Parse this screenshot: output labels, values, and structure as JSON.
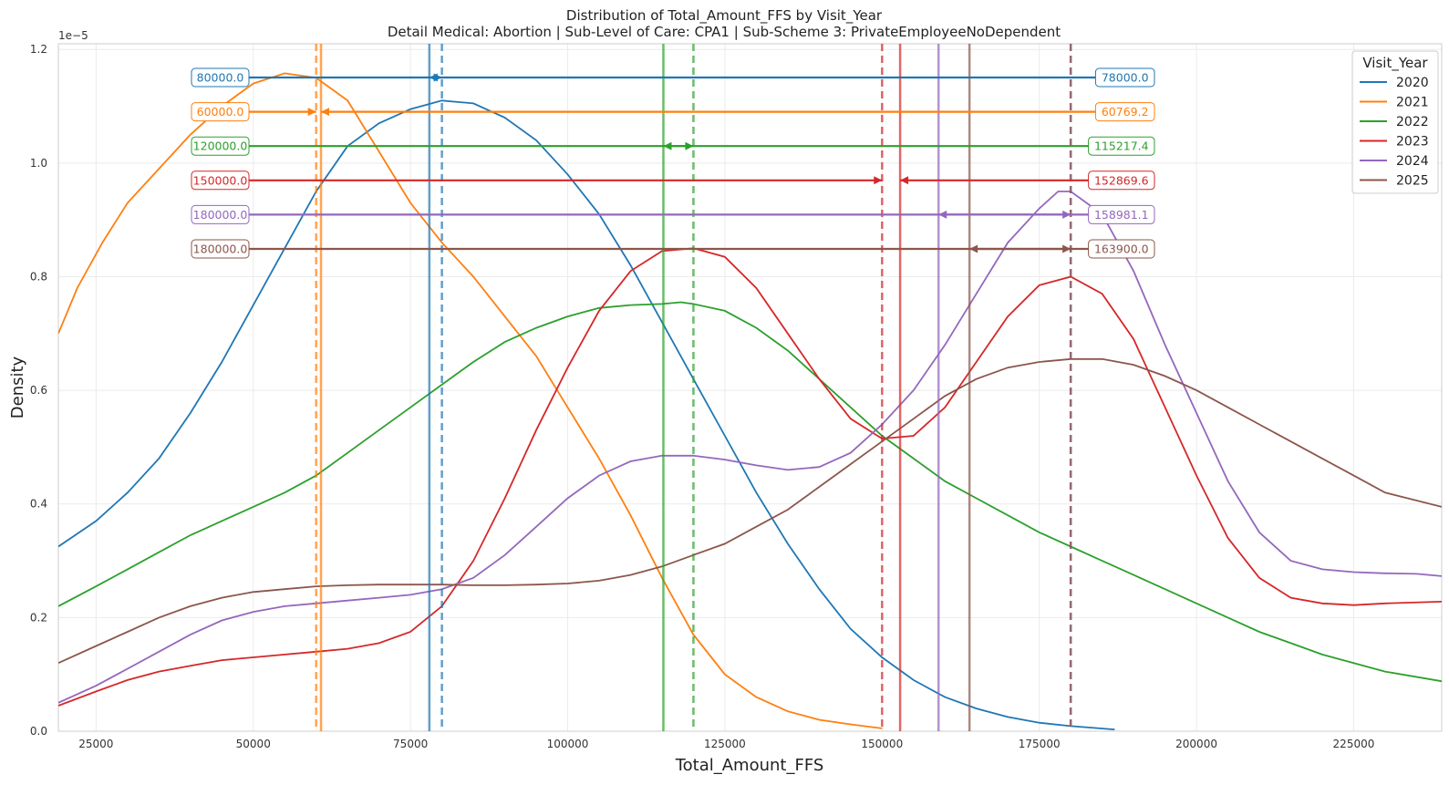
{
  "chart_data": {
    "type": "line",
    "title": "Distribution of Total_Amount_FFS by Visit_Year",
    "subtitle": "Detail Medical: Abortion | Sub-Level of Care: CPA1 | Sub-Scheme 3: PrivateEmployeeNoDependent",
    "xlabel": "Total_Amount_FFS",
    "ylabel": "Density",
    "y_offset_text": "1e−5",
    "xlim": [
      19000,
      239000
    ],
    "ylim": [
      0,
      1.21
    ],
    "x_ticks": [
      25000,
      50000,
      75000,
      100000,
      125000,
      150000,
      175000,
      200000,
      225000
    ],
    "x_tick_labels": [
      "25000",
      "50000",
      "75000",
      "100000",
      "125000",
      "150000",
      "175000",
      "200000",
      "225000"
    ],
    "y_ticks": [
      0.0,
      0.2,
      0.4,
      0.6,
      0.8,
      1.0,
      1.2
    ],
    "y_tick_labels": [
      "0.0",
      "0.2",
      "0.4",
      "0.6",
      "0.8",
      "1.0",
      "1.2"
    ],
    "grid": true,
    "legend": {
      "title": "Visit_Year",
      "placement": "top-right"
    },
    "series": [
      {
        "name": "2020",
        "color": "#1f77b4",
        "mean": 78000.0,
        "median": 80000.0,
        "mean_label": "78000.0",
        "median_label": "80000.0",
        "points": [
          [
            19000,
            0.325
          ],
          [
            25000,
            0.37
          ],
          [
            30000,
            0.42
          ],
          [
            35000,
            0.48
          ],
          [
            40000,
            0.56
          ],
          [
            45000,
            0.65
          ],
          [
            50000,
            0.75
          ],
          [
            55000,
            0.85
          ],
          [
            60000,
            0.95
          ],
          [
            65000,
            1.03
          ],
          [
            70000,
            1.07
          ],
          [
            75000,
            1.095
          ],
          [
            80000,
            1.11
          ],
          [
            85000,
            1.105
          ],
          [
            90000,
            1.08
          ],
          [
            95000,
            1.04
          ],
          [
            100000,
            0.98
          ],
          [
            105000,
            0.91
          ],
          [
            110000,
            0.82
          ],
          [
            115000,
            0.72
          ],
          [
            120000,
            0.62
          ],
          [
            125000,
            0.52
          ],
          [
            130000,
            0.42
          ],
          [
            135000,
            0.33
          ],
          [
            140000,
            0.25
          ],
          [
            145000,
            0.18
          ],
          [
            150000,
            0.13
          ],
          [
            155000,
            0.09
          ],
          [
            160000,
            0.06
          ],
          [
            165000,
            0.04
          ],
          [
            170000,
            0.025
          ],
          [
            175000,
            0.015
          ],
          [
            180000,
            0.009
          ],
          [
            187000,
            0.003
          ]
        ]
      },
      {
        "name": "2021",
        "color": "#ff7f0e",
        "mean": 60769.2,
        "median": 60000.0,
        "mean_label": "60769.2",
        "median_label": "60000.0",
        "points": [
          [
            19000,
            0.7
          ],
          [
            22000,
            0.78
          ],
          [
            26000,
            0.86
          ],
          [
            30000,
            0.93
          ],
          [
            35000,
            0.99
          ],
          [
            40000,
            1.05
          ],
          [
            45000,
            1.1
          ],
          [
            50000,
            1.14
          ],
          [
            55000,
            1.158
          ],
          [
            60000,
            1.15
          ],
          [
            65000,
            1.11
          ],
          [
            70000,
            1.02
          ],
          [
            75000,
            0.93
          ],
          [
            80000,
            0.86
          ],
          [
            85000,
            0.8
          ],
          [
            90000,
            0.73
          ],
          [
            95000,
            0.66
          ],
          [
            100000,
            0.57
          ],
          [
            105000,
            0.48
          ],
          [
            110000,
            0.38
          ],
          [
            115000,
            0.27
          ],
          [
            120000,
            0.17
          ],
          [
            125000,
            0.1
          ],
          [
            130000,
            0.06
          ],
          [
            135000,
            0.035
          ],
          [
            140000,
            0.02
          ],
          [
            145000,
            0.012
          ],
          [
            150000,
            0.005
          ]
        ]
      },
      {
        "name": "2022",
        "color": "#2ca02c",
        "mean": 115217.4,
        "median": 120000.0,
        "mean_label": "115217.4",
        "median_label": "120000.0",
        "points": [
          [
            19000,
            0.22
          ],
          [
            25000,
            0.255
          ],
          [
            30000,
            0.285
          ],
          [
            35000,
            0.315
          ],
          [
            40000,
            0.345
          ],
          [
            45000,
            0.37
          ],
          [
            50000,
            0.395
          ],
          [
            55000,
            0.42
          ],
          [
            60000,
            0.45
          ],
          [
            65000,
            0.49
          ],
          [
            70000,
            0.53
          ],
          [
            75000,
            0.57
          ],
          [
            80000,
            0.61
          ],
          [
            85000,
            0.65
          ],
          [
            90000,
            0.685
          ],
          [
            95000,
            0.71
          ],
          [
            100000,
            0.73
          ],
          [
            105000,
            0.745
          ],
          [
            110000,
            0.75
          ],
          [
            115000,
            0.752
          ],
          [
            118000,
            0.755
          ],
          [
            120000,
            0.752
          ],
          [
            125000,
            0.74
          ],
          [
            130000,
            0.71
          ],
          [
            135000,
            0.67
          ],
          [
            140000,
            0.62
          ],
          [
            145000,
            0.57
          ],
          [
            150000,
            0.52
          ],
          [
            155000,
            0.48
          ],
          [
            160000,
            0.44
          ],
          [
            165000,
            0.41
          ],
          [
            170000,
            0.38
          ],
          [
            175000,
            0.35
          ],
          [
            180000,
            0.325
          ],
          [
            185000,
            0.3
          ],
          [
            190000,
            0.275
          ],
          [
            195000,
            0.25
          ],
          [
            200000,
            0.225
          ],
          [
            205000,
            0.2
          ],
          [
            210000,
            0.175
          ],
          [
            215000,
            0.155
          ],
          [
            220000,
            0.135
          ],
          [
            225000,
            0.12
          ],
          [
            230000,
            0.105
          ],
          [
            239000,
            0.088
          ]
        ]
      },
      {
        "name": "2023",
        "color": "#d62728",
        "mean": 152869.6,
        "median": 150000.0,
        "mean_label": "152869.6",
        "median_label": "150000.0",
        "points": [
          [
            19000,
            0.045
          ],
          [
            25000,
            0.07
          ],
          [
            30000,
            0.09
          ],
          [
            35000,
            0.105
          ],
          [
            40000,
            0.115
          ],
          [
            45000,
            0.125
          ],
          [
            50000,
            0.13
          ],
          [
            55000,
            0.135
          ],
          [
            60000,
            0.14
          ],
          [
            65000,
            0.145
          ],
          [
            70000,
            0.155
          ],
          [
            75000,
            0.175
          ],
          [
            80000,
            0.22
          ],
          [
            85000,
            0.3
          ],
          [
            90000,
            0.41
          ],
          [
            95000,
            0.53
          ],
          [
            100000,
            0.64
          ],
          [
            105000,
            0.74
          ],
          [
            110000,
            0.81
          ],
          [
            115000,
            0.845
          ],
          [
            120000,
            0.85
          ],
          [
            125000,
            0.835
          ],
          [
            130000,
            0.78
          ],
          [
            135000,
            0.7
          ],
          [
            140000,
            0.62
          ],
          [
            145000,
            0.55
          ],
          [
            150000,
            0.515
          ],
          [
            155000,
            0.52
          ],
          [
            160000,
            0.57
          ],
          [
            165000,
            0.65
          ],
          [
            170000,
            0.73
          ],
          [
            175000,
            0.785
          ],
          [
            180000,
            0.8
          ],
          [
            185000,
            0.77
          ],
          [
            190000,
            0.69
          ],
          [
            195000,
            0.57
          ],
          [
            200000,
            0.45
          ],
          [
            205000,
            0.34
          ],
          [
            210000,
            0.27
          ],
          [
            215000,
            0.235
          ],
          [
            220000,
            0.225
          ],
          [
            225000,
            0.222
          ],
          [
            230000,
            0.225
          ],
          [
            239000,
            0.228
          ]
        ]
      },
      {
        "name": "2024",
        "color": "#9467bd",
        "mean": 158981.1,
        "median": 180000.0,
        "mean_label": "158981.1",
        "median_label": "180000.0",
        "points": [
          [
            19000,
            0.05
          ],
          [
            25000,
            0.08
          ],
          [
            30000,
            0.11
          ],
          [
            35000,
            0.14
          ],
          [
            40000,
            0.17
          ],
          [
            45000,
            0.195
          ],
          [
            50000,
            0.21
          ],
          [
            55000,
            0.22
          ],
          [
            60000,
            0.225
          ],
          [
            65000,
            0.23
          ],
          [
            70000,
            0.235
          ],
          [
            75000,
            0.24
          ],
          [
            80000,
            0.25
          ],
          [
            85000,
            0.27
          ],
          [
            90000,
            0.31
          ],
          [
            95000,
            0.36
          ],
          [
            100000,
            0.41
          ],
          [
            105000,
            0.45
          ],
          [
            110000,
            0.475
          ],
          [
            115000,
            0.485
          ],
          [
            120000,
            0.485
          ],
          [
            125000,
            0.478
          ],
          [
            130000,
            0.468
          ],
          [
            135000,
            0.46
          ],
          [
            140000,
            0.465
          ],
          [
            145000,
            0.49
          ],
          [
            150000,
            0.54
          ],
          [
            155000,
            0.6
          ],
          [
            160000,
            0.68
          ],
          [
            165000,
            0.77
          ],
          [
            170000,
            0.86
          ],
          [
            175000,
            0.92
          ],
          [
            178000,
            0.95
          ],
          [
            180000,
            0.95
          ],
          [
            185000,
            0.91
          ],
          [
            190000,
            0.81
          ],
          [
            195000,
            0.68
          ],
          [
            200000,
            0.56
          ],
          [
            205000,
            0.44
          ],
          [
            210000,
            0.35
          ],
          [
            215000,
            0.3
          ],
          [
            220000,
            0.285
          ],
          [
            225000,
            0.28
          ],
          [
            230000,
            0.278
          ],
          [
            235000,
            0.277
          ],
          [
            239000,
            0.273
          ]
        ]
      },
      {
        "name": "2025",
        "color": "#8c564b",
        "mean": 163900.0,
        "median": 180000.0,
        "mean_label": "163900.0",
        "median_label": "180000.0",
        "points": [
          [
            19000,
            0.12
          ],
          [
            25000,
            0.15
          ],
          [
            30000,
            0.175
          ],
          [
            35000,
            0.2
          ],
          [
            40000,
            0.22
          ],
          [
            45000,
            0.235
          ],
          [
            50000,
            0.245
          ],
          [
            55000,
            0.25
          ],
          [
            60000,
            0.255
          ],
          [
            65000,
            0.257
          ],
          [
            70000,
            0.258
          ],
          [
            75000,
            0.258
          ],
          [
            80000,
            0.258
          ],
          [
            85000,
            0.257
          ],
          [
            90000,
            0.257
          ],
          [
            95000,
            0.258
          ],
          [
            100000,
            0.26
          ],
          [
            105000,
            0.265
          ],
          [
            110000,
            0.275
          ],
          [
            115000,
            0.29
          ],
          [
            120000,
            0.31
          ],
          [
            125000,
            0.33
          ],
          [
            130000,
            0.36
          ],
          [
            135000,
            0.39
          ],
          [
            140000,
            0.43
          ],
          [
            145000,
            0.47
          ],
          [
            150000,
            0.51
          ],
          [
            155000,
            0.55
          ],
          [
            160000,
            0.59
          ],
          [
            165000,
            0.62
          ],
          [
            170000,
            0.64
          ],
          [
            175000,
            0.65
          ],
          [
            180000,
            0.655
          ],
          [
            185000,
            0.655
          ],
          [
            190000,
            0.645
          ],
          [
            195000,
            0.625
          ],
          [
            200000,
            0.6
          ],
          [
            205000,
            0.57
          ],
          [
            210000,
            0.54
          ],
          [
            215000,
            0.51
          ],
          [
            220000,
            0.48
          ],
          [
            225000,
            0.45
          ],
          [
            230000,
            0.42
          ],
          [
            239000,
            0.395
          ]
        ]
      }
    ]
  }
}
